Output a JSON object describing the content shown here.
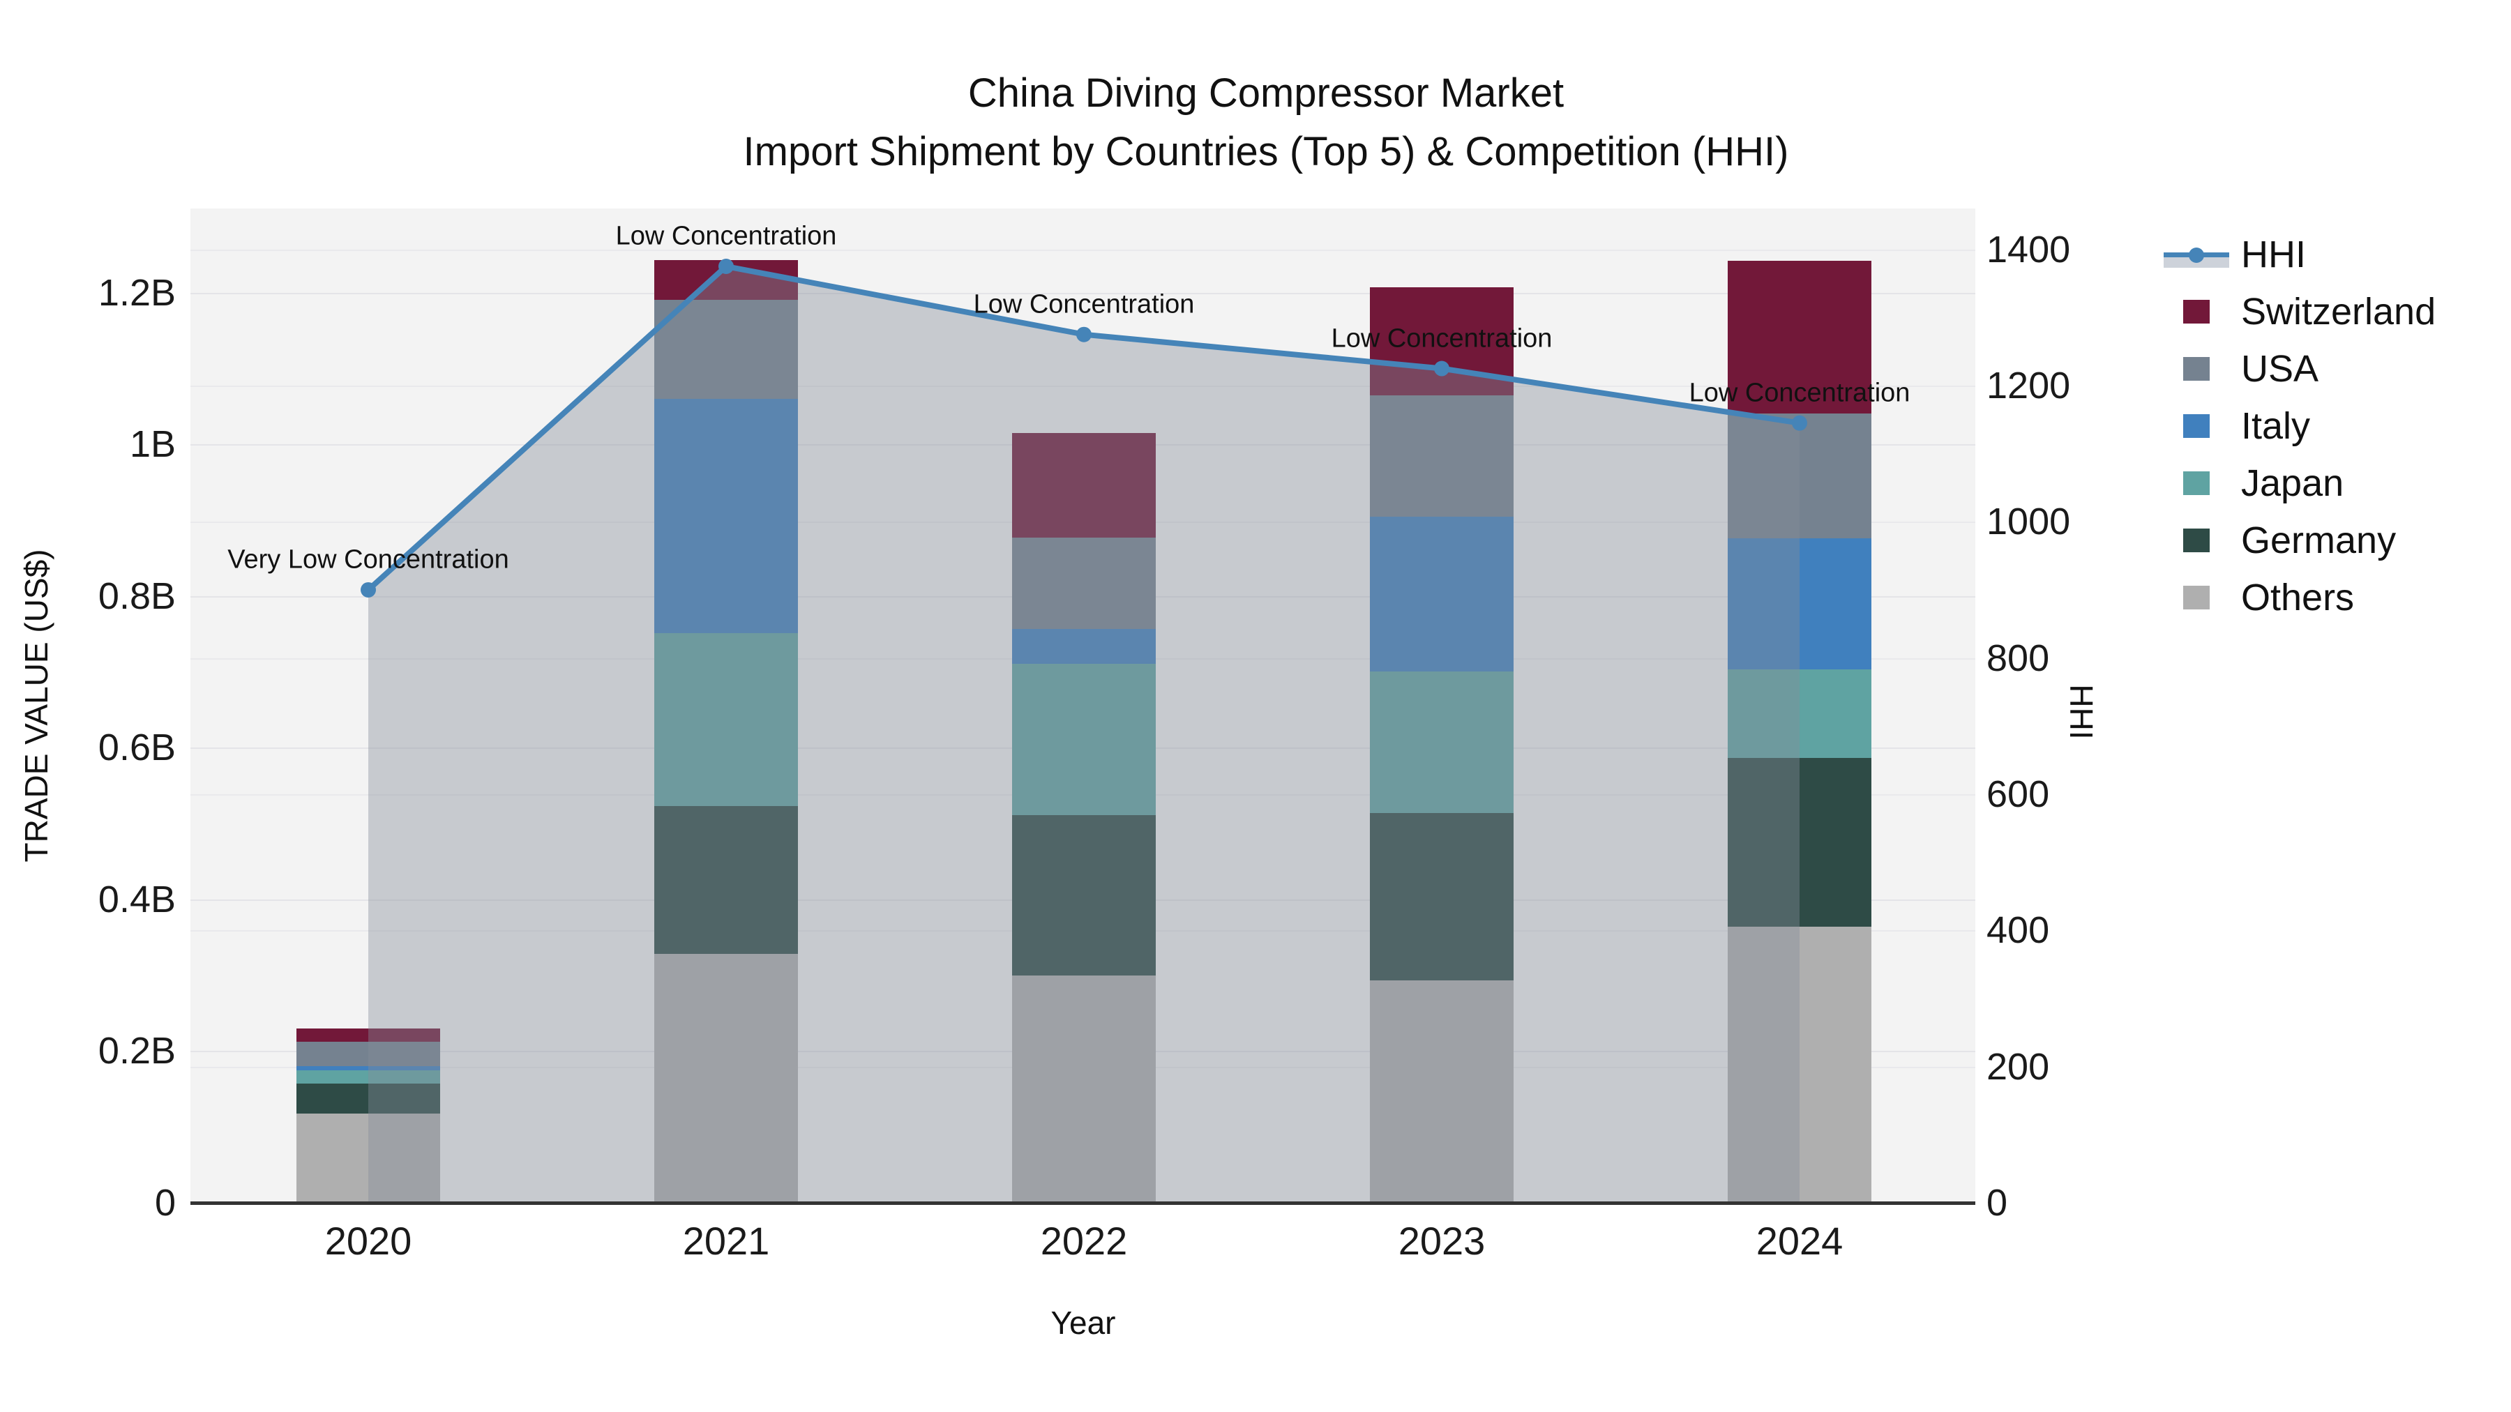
{
  "title": {
    "line1": "China Diving Compressor Market",
    "line2": "Import Shipment by Countries (Top 5) & Competition (HHI)"
  },
  "axes": {
    "x_title": "Year",
    "y_left_title": "TRADE VALUE (US$)",
    "y_right_title": "HHI",
    "y_left_ticks": [
      {
        "label": "0",
        "value": 0.0
      },
      {
        "label": "0.2B",
        "value": 0.2
      },
      {
        "label": "0.4B",
        "value": 0.4
      },
      {
        "label": "0.6B",
        "value": 0.6
      },
      {
        "label": "0.8B",
        "value": 0.8
      },
      {
        "label": "1B",
        "value": 1.0
      },
      {
        "label": "1.2B",
        "value": 1.2
      }
    ],
    "y_right_ticks": [
      {
        "label": "0",
        "value": 0
      },
      {
        "label": "200",
        "value": 200
      },
      {
        "label": "400",
        "value": 400
      },
      {
        "label": "600",
        "value": 600
      },
      {
        "label": "800",
        "value": 800
      },
      {
        "label": "1000",
        "value": 1000
      },
      {
        "label": "1200",
        "value": 1200
      },
      {
        "label": "1400",
        "value": 1400
      }
    ],
    "y_left_max_billions": 1.311,
    "y_right_max": 1460,
    "grid": true
  },
  "chart_data": {
    "type": "stacked_bar_with_line",
    "categories": [
      "2020",
      "2021",
      "2022",
      "2023",
      "2024"
    ],
    "value_unit": "billions US$",
    "series": [
      {
        "name": "Switzerland",
        "color": "#721839",
        "values": [
          0.018,
          0.052,
          0.138,
          0.142,
          0.201
        ]
      },
      {
        "name": "USA",
        "color": "#758290",
        "values": [
          0.032,
          0.131,
          0.12,
          0.16,
          0.165
        ]
      },
      {
        "name": "Italy",
        "color": "#4080BE",
        "values": [
          0.005,
          0.309,
          0.046,
          0.204,
          0.173
        ]
      },
      {
        "name": "Japan",
        "color": "#5FA3A2",
        "values": [
          0.018,
          0.228,
          0.2,
          0.187,
          0.116
        ]
      },
      {
        "name": "Germany",
        "color": "#2E4B46",
        "values": [
          0.039,
          0.195,
          0.211,
          0.221,
          0.223
        ]
      },
      {
        "name": "Others",
        "color": "#AFAFAF",
        "values": [
          0.118,
          0.328,
          0.3,
          0.293,
          0.364
        ]
      }
    ],
    "stack_order_bottom_to_top": [
      "Others",
      "Germany",
      "Japan",
      "Italy",
      "USA",
      "Switzerland"
    ],
    "bar_totals": [
      0.23,
      1.243,
      1.015,
      1.207,
      1.242
    ],
    "line": {
      "name": "HHI",
      "axis": "right",
      "color": "#4584B8",
      "area_fill": "rgba(132,140,153,0.40)",
      "values": [
        900,
        1375,
        1275,
        1225,
        1145
      ]
    },
    "annotations": [
      {
        "category": "2020",
        "text": "Very Low Concentration"
      },
      {
        "category": "2021",
        "text": "Low Concentration"
      },
      {
        "category": "2022",
        "text": "Low Concentration"
      },
      {
        "category": "2023",
        "text": "Low Concentration"
      },
      {
        "category": "2024",
        "text": "Low Concentration"
      }
    ],
    "legend_position": "right"
  },
  "legend": {
    "items": [
      {
        "name": "HHI",
        "type": "line",
        "color": "#4584B8"
      },
      {
        "name": "Switzerland",
        "type": "swatch",
        "color": "#721839"
      },
      {
        "name": "USA",
        "type": "swatch",
        "color": "#758290"
      },
      {
        "name": "Italy",
        "type": "swatch",
        "color": "#4080BE"
      },
      {
        "name": "Japan",
        "type": "swatch",
        "color": "#5FA3A2"
      },
      {
        "name": "Germany",
        "type": "swatch",
        "color": "#2E4B46"
      },
      {
        "name": "Others",
        "type": "swatch",
        "color": "#AFAFAF"
      }
    ]
  },
  "colors": {
    "plot_background": "#F3F3F3",
    "gridline": "#E4E4E8",
    "axis_spine": "#333333",
    "text": "#1A1A1A"
  }
}
